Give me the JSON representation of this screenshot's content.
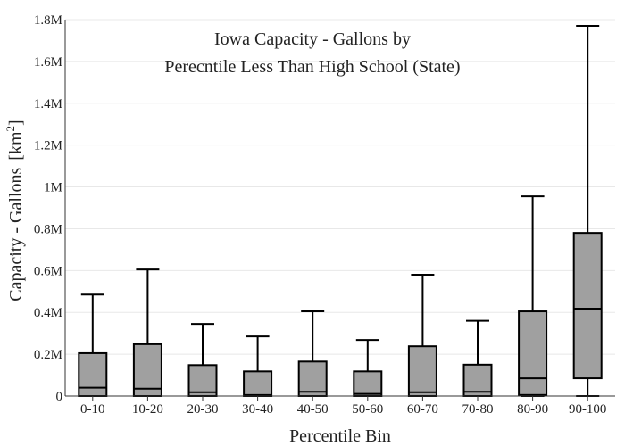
{
  "chart_data": {
    "type": "box",
    "title_lines": [
      "Iowa Capacity - Gallons by",
      "Perecntile Less Than High School (State)"
    ],
    "xlabel": "Percentile Bin",
    "ylabel": {
      "main": "Capacity - Gallons",
      "unit_base": "km",
      "unit_exp": "2"
    },
    "ylim": [
      0,
      1800000
    ],
    "yticks": [
      {
        "value": 0,
        "label": "0"
      },
      {
        "value": 200000,
        "label": "0.2M"
      },
      {
        "value": 400000,
        "label": "0.4M"
      },
      {
        "value": 600000,
        "label": "0.6M"
      },
      {
        "value": 800000,
        "label": "0.8M"
      },
      {
        "value": 1000000,
        "label": "1M"
      },
      {
        "value": 1200000,
        "label": "1.2M"
      },
      {
        "value": 1400000,
        "label": "1.4M"
      },
      {
        "value": 1600000,
        "label": "1.6M"
      },
      {
        "value": 1800000,
        "label": "1.8M"
      }
    ],
    "grid": true,
    "box_fill": "#a0a0a0",
    "box_stroke": "#000000",
    "grid_color": "#e8e8e8",
    "categories": [
      "0-10",
      "10-20",
      "20-30",
      "30-40",
      "40-50",
      "50-60",
      "60-70",
      "70-80",
      "80-90",
      "90-100"
    ],
    "boxes": [
      {
        "min": 0,
        "q1": 0,
        "median": 40000,
        "q3": 205000,
        "max": 485000
      },
      {
        "min": 0,
        "q1": 0,
        "median": 35000,
        "q3": 248000,
        "max": 605000
      },
      {
        "min": 0,
        "q1": 0,
        "median": 18000,
        "q3": 148000,
        "max": 345000
      },
      {
        "min": 0,
        "q1": 0,
        "median": 5000,
        "q3": 118000,
        "max": 285000
      },
      {
        "min": 0,
        "q1": 0,
        "median": 20000,
        "q3": 165000,
        "max": 405000
      },
      {
        "min": 0,
        "q1": 0,
        "median": 10000,
        "q3": 118000,
        "max": 268000
      },
      {
        "min": 0,
        "q1": 0,
        "median": 18000,
        "q3": 238000,
        "max": 580000
      },
      {
        "min": 0,
        "q1": 0,
        "median": 20000,
        "q3": 150000,
        "max": 360000
      },
      {
        "min": 0,
        "q1": 5000,
        "median": 85000,
        "q3": 405000,
        "max": 955000
      },
      {
        "min": 0,
        "q1": 85000,
        "median": 418000,
        "q3": 780000,
        "max": 1770000
      }
    ]
  }
}
